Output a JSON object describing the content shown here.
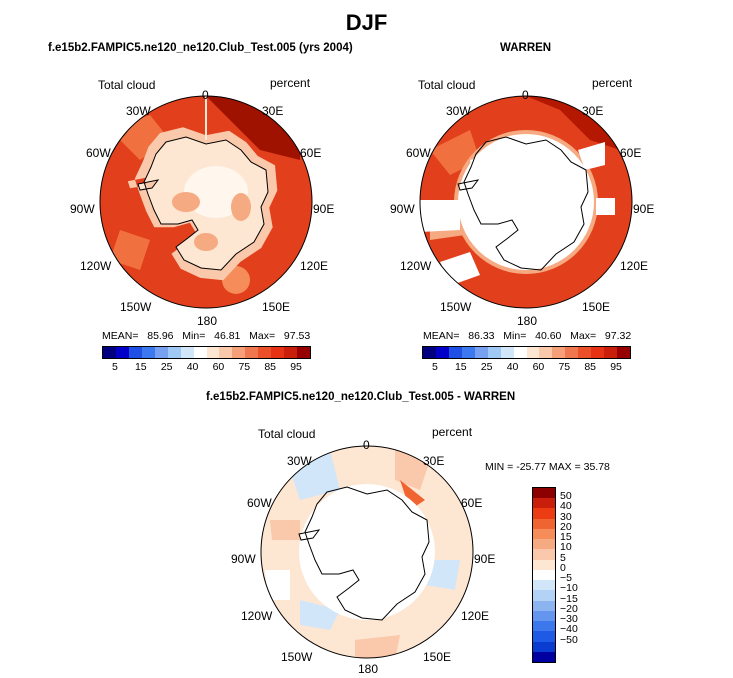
{
  "title": "DJF",
  "panels": [
    {
      "title": "f.e15b2.FAMPIC5.ne120_ne120.Club_Test.005 (yrs 2004)",
      "variable": "Total cloud",
      "units": "percent",
      "stats": {
        "mean_label": "MEAN=",
        "mean": "85.96",
        "min_label": "Min=",
        "min": "46.81",
        "max_label": "Max=",
        "max": "97.53"
      }
    },
    {
      "title": "WARREN",
      "variable": "Total cloud",
      "units": "percent",
      "stats": {
        "mean_label": "MEAN=",
        "mean": "86.33",
        "min_label": "Min=",
        "min": "40.60",
        "max_label": "Max=",
        "max": "97.32"
      }
    },
    {
      "title": "f.e15b2.FAMPIC5.ne120_ne120.Club_Test.005 - WARREN",
      "variable": "Total cloud",
      "units": "percent",
      "minmax": "MIN = -25.77  MAX =  35.78"
    }
  ],
  "longitudes": [
    "0",
    "30E",
    "60E",
    "90E",
    "120E",
    "150E",
    "180",
    "150W",
    "120W",
    "90W",
    "60W",
    "30W"
  ],
  "colorbar_abs": {
    "colors": [
      "#000080",
      "#0000c8",
      "#1e50e6",
      "#3c78f0",
      "#78a0f0",
      "#a0c8f5",
      "#d2e6fa",
      "#ffffff",
      "#fce6d2",
      "#fac8aa",
      "#f5a078",
      "#f07850",
      "#eb5028",
      "#e63214",
      "#c81e0a",
      "#960000"
    ],
    "tick_labels": [
      "5",
      "15",
      "25",
      "40",
      "60",
      "75",
      "85",
      "95"
    ]
  },
  "colorbar_diff": {
    "colors": [
      "#8c0000",
      "#c81e0a",
      "#eb3c14",
      "#f06432",
      "#f58c5a",
      "#f5aa82",
      "#fac8aa",
      "#fde6d2",
      "#ffffff",
      "#d2e6fa",
      "#b4d2f5",
      "#8cb4f0",
      "#6496f0",
      "#3c78eb",
      "#1e5ae6",
      "#0a3cd2",
      "#0000a0"
    ],
    "tick_labels": [
      "50",
      "40",
      "30",
      "20",
      "15",
      "10",
      "5",
      "0",
      "−5",
      "−10",
      "−15",
      "−20",
      "−30",
      "−40",
      "−50"
    ]
  }
}
